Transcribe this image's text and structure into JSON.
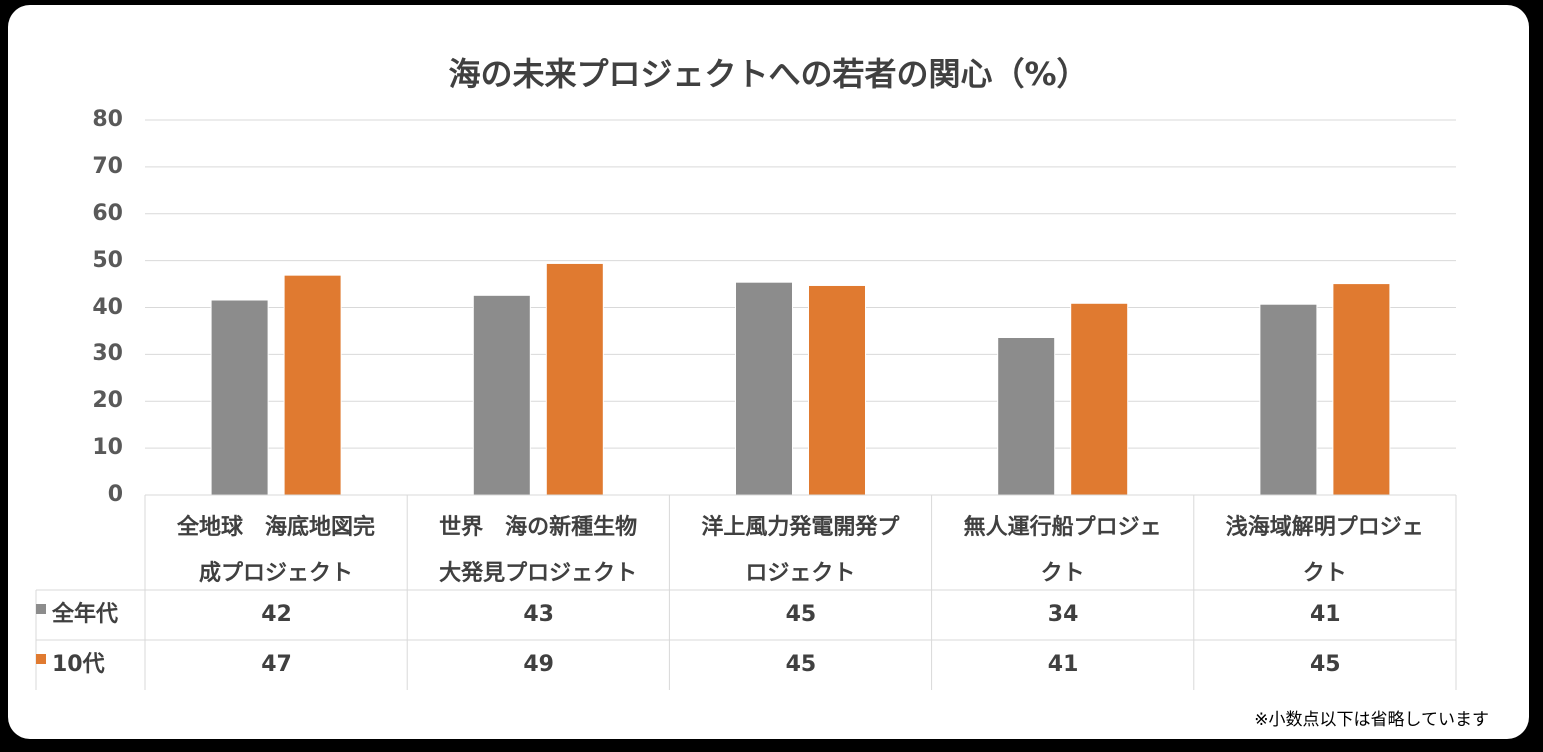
{
  "chart_data": {
    "type": "bar",
    "title": "海の未来プロジェクトへの若者の関心（%）",
    "categories": [
      [
        "全地球　海底地図完",
        "成プロジェクト"
      ],
      [
        "世界　海の新種生物",
        "大発見プロジェクト"
      ],
      [
        "洋上風力発電開発プ",
        "ロジェクト"
      ],
      [
        "無人運行船プロジェ",
        "クト"
      ],
      [
        "浅海域解明プロジェ",
        "クト"
      ]
    ],
    "series": [
      {
        "name": "全年代",
        "color": "#8c8c8c",
        "values": [
          41.6,
          42.6,
          45.4,
          33.6,
          40.7
        ],
        "table": [
          "42",
          "43",
          "45",
          "34",
          "41"
        ]
      },
      {
        "name": "10代",
        "color": "#e07a30",
        "values": [
          46.9,
          49.4,
          44.7,
          40.9,
          45.1
        ],
        "table": [
          "47",
          "49",
          "45",
          "41",
          "45"
        ]
      }
    ],
    "ylim": [
      0,
      80
    ],
    "yticks": [
      "0",
      "10",
      "20",
      "30",
      "40",
      "50",
      "60",
      "70",
      "80"
    ],
    "grid": true,
    "legend": "data-table"
  },
  "footnote": "※小数点以下は省略しています"
}
